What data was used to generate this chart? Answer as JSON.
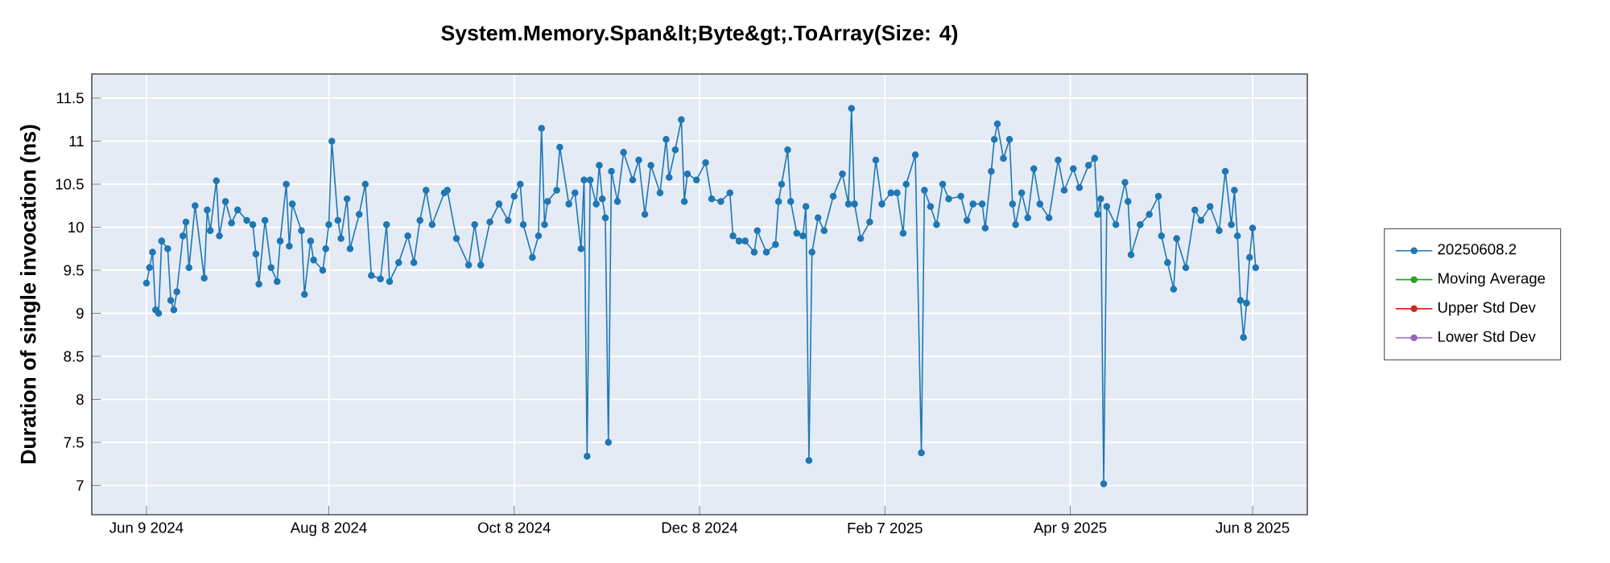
{
  "chart_data": {
    "type": "line",
    "title": "System.Memory.Span&lt;Byte&gt;.ToArray(Size: 4)",
    "ylabel": "Duration of single invocation (ns)",
    "xlim": [
      "2024-05-22",
      "2025-06-26"
    ],
    "ylim": [
      6.66,
      11.78
    ],
    "xticks": [
      {
        "value": "2024-06-09",
        "label": "Jun 9 2024"
      },
      {
        "value": "2024-08-08",
        "label": "Aug 8 2024"
      },
      {
        "value": "2024-10-08",
        "label": "Oct 8 2024"
      },
      {
        "value": "2024-12-08",
        "label": "Dec 8 2024"
      },
      {
        "value": "2025-02-07",
        "label": "Feb 7 2025"
      },
      {
        "value": "2025-04-09",
        "label": "Apr 9 2025"
      },
      {
        "value": "2025-06-08",
        "label": "Jun 8 2025"
      }
    ],
    "yticks": [
      7,
      7.5,
      8,
      8.5,
      9,
      9.5,
      10,
      10.5,
      11,
      11.5
    ],
    "grid": true,
    "legend": "right",
    "marker": "circle",
    "line_style": "solid",
    "x": [
      "2024-06-09",
      "2024-06-10",
      "2024-06-11",
      "2024-06-12",
      "2024-06-13",
      "2024-06-14",
      "2024-06-16",
      "2024-06-17",
      "2024-06-18",
      "2024-06-19",
      "2024-06-21",
      "2024-06-22",
      "2024-06-23",
      "2024-06-25",
      "2024-06-28",
      "2024-06-29",
      "2024-06-30",
      "2024-07-02",
      "2024-07-03",
      "2024-07-05",
      "2024-07-07",
      "2024-07-09",
      "2024-07-12",
      "2024-07-14",
      "2024-07-15",
      "2024-07-16",
      "2024-07-18",
      "2024-07-20",
      "2024-07-22",
      "2024-07-23",
      "2024-07-25",
      "2024-07-26",
      "2024-07-27",
      "2024-07-30",
      "2024-07-31",
      "2024-08-02",
      "2024-08-03",
      "2024-08-06",
      "2024-08-07",
      "2024-08-08",
      "2024-08-09",
      "2024-08-11",
      "2024-08-12",
      "2024-08-14",
      "2024-08-15",
      "2024-08-18",
      "2024-08-20",
      "2024-08-22",
      "2024-08-25",
      "2024-08-27",
      "2024-08-28",
      "2024-08-31",
      "2024-09-03",
      "2024-09-05",
      "2024-09-07",
      "2024-09-09",
      "2024-09-11",
      "2024-09-15",
      "2024-09-16",
      "2024-09-19",
      "2024-09-23",
      "2024-09-25",
      "2024-09-27",
      "2024-09-30",
      "2024-10-03",
      "2024-10-06",
      "2024-10-08",
      "2024-10-10",
      "2024-10-11",
      "2024-10-14",
      "2024-10-16",
      "2024-10-17",
      "2024-10-18",
      "2024-10-19",
      "2024-10-22",
      "2024-10-23",
      "2024-10-26",
      "2024-10-28",
      "2024-10-30",
      "2024-10-31",
      "2024-11-01",
      "2024-11-02",
      "2024-11-04",
      "2024-11-05",
      "2024-11-06",
      "2024-11-07",
      "2024-11-08",
      "2024-11-09",
      "2024-11-11",
      "2024-11-13",
      "2024-11-16",
      "2024-11-18",
      "2024-11-20",
      "2024-11-22",
      "2024-11-25",
      "2024-11-27",
      "2024-11-28",
      "2024-11-30",
      "2024-12-02",
      "2024-12-03",
      "2024-12-04",
      "2024-12-07",
      "2024-12-10",
      "2024-12-12",
      "2024-12-15",
      "2024-12-18",
      "2024-12-19",
      "2024-12-21",
      "2024-12-23",
      "2024-12-26",
      "2024-12-27",
      "2024-12-30",
      "2025-01-02",
      "2025-01-03",
      "2025-01-04",
      "2025-01-06",
      "2025-01-07",
      "2025-01-09",
      "2025-01-11",
      "2025-01-12",
      "2025-01-13",
      "2025-01-14",
      "2025-01-16",
      "2025-01-18",
      "2025-01-21",
      "2025-01-24",
      "2025-01-26",
      "2025-01-27",
      "2025-01-28",
      "2025-01-30",
      "2025-02-02",
      "2025-02-04",
      "2025-02-06",
      "2025-02-09",
      "2025-02-11",
      "2025-02-13",
      "2025-02-14",
      "2025-02-17",
      "2025-02-19",
      "2025-02-20",
      "2025-02-22",
      "2025-02-24",
      "2025-02-26",
      "2025-02-28",
      "2025-03-04",
      "2025-03-06",
      "2025-03-08",
      "2025-03-11",
      "2025-03-12",
      "2025-03-14",
      "2025-03-15",
      "2025-03-16",
      "2025-03-18",
      "2025-03-20",
      "2025-03-21",
      "2025-03-22",
      "2025-03-24",
      "2025-03-26",
      "2025-03-28",
      "2025-03-30",
      "2025-04-02",
      "2025-04-05",
      "2025-04-07",
      "2025-04-10",
      "2025-04-12",
      "2025-04-15",
      "2025-04-17",
      "2025-04-18",
      "2025-04-19",
      "2025-04-20",
      "2025-04-21",
      "2025-04-24",
      "2025-04-27",
      "2025-04-28",
      "2025-04-29",
      "2025-05-02",
      "2025-05-05",
      "2025-05-08",
      "2025-05-09",
      "2025-05-11",
      "2025-05-13",
      "2025-05-14",
      "2025-05-17",
      "2025-05-20",
      "2025-05-22",
      "2025-05-25",
      "2025-05-28",
      "2025-05-30",
      "2025-06-01",
      "2025-06-02",
      "2025-06-03",
      "2025-06-04",
      "2025-06-05",
      "2025-06-06",
      "2025-06-07",
      "2025-06-08",
      "2025-06-09"
    ],
    "series": [
      {
        "name": "20250608.2",
        "color": "#1f77b4",
        "values": [
          9.35,
          9.53,
          9.71,
          9.04,
          9.0,
          9.84,
          9.75,
          9.15,
          9.04,
          9.25,
          9.9,
          10.06,
          9.53,
          10.25,
          9.41,
          10.2,
          9.96,
          10.54,
          9.9,
          10.3,
          10.05,
          10.2,
          10.08,
          10.03,
          9.69,
          9.34,
          10.08,
          9.53,
          9.37,
          9.84,
          10.5,
          9.78,
          10.27,
          9.96,
          9.22,
          9.84,
          9.62,
          9.5,
          9.75,
          10.03,
          11.0,
          10.08,
          9.87,
          10.33,
          9.75,
          10.15,
          10.5,
          9.44,
          9.4,
          10.03,
          9.37,
          9.59,
          9.9,
          9.59,
          10.08,
          10.43,
          10.03,
          10.4,
          10.43,
          9.87,
          9.56,
          10.03,
          9.56,
          10.06,
          10.27,
          10.08,
          10.36,
          10.5,
          10.03,
          9.65,
          9.9,
          11.15,
          10.03,
          10.3,
          10.43,
          10.93,
          10.27,
          10.4,
          9.75,
          10.55,
          7.34,
          10.55,
          10.27,
          10.72,
          10.33,
          10.11,
          7.5,
          10.65,
          10.3,
          10.87,
          10.55,
          10.78,
          10.15,
          10.72,
          10.4,
          11.02,
          10.58,
          10.9,
          11.25,
          10.3,
          10.62,
          10.55,
          10.75,
          10.33,
          10.3,
          10.4,
          9.9,
          9.84,
          9.84,
          9.71,
          9.96,
          9.71,
          9.8,
          10.3,
          10.5,
          10.9,
          10.3,
          9.93,
          9.9,
          10.24,
          7.29,
          9.71,
          10.11,
          9.96,
          10.36,
          10.62,
          10.27,
          11.38,
          10.27,
          9.87,
          10.06,
          10.78,
          10.27,
          10.4,
          10.4,
          9.93,
          10.5,
          10.84,
          7.38,
          10.43,
          10.24,
          10.03,
          10.5,
          10.33,
          10.36,
          10.08,
          10.27,
          10.27,
          9.99,
          10.65,
          11.02,
          11.2,
          10.8,
          11.02,
          10.27,
          10.03,
          10.4,
          10.11,
          10.68,
          10.27,
          10.11,
          10.78,
          10.43,
          10.68,
          10.46,
          10.72,
          10.8,
          10.15,
          10.33,
          7.02,
          10.24,
          10.03,
          10.52,
          10.3,
          9.68,
          10.03,
          10.15,
          10.36,
          9.9,
          9.59,
          9.28,
          9.87,
          9.53,
          10.2,
          10.08,
          10.24,
          9.96,
          10.65,
          10.03,
          10.43,
          9.9,
          9.15,
          8.72,
          9.12,
          9.65,
          9.99,
          9.53
        ]
      },
      {
        "name": "Moving Average",
        "color": "#2ca02c",
        "values": [
          null,
          null,
          null,
          null,
          null,
          null,
          null,
          null,
          null,
          null,
          null,
          null,
          null,
          null,
          null,
          null,
          null,
          null,
          null,
          null,
          null,
          null,
          null,
          null,
          null,
          null,
          null,
          null,
          null,
          null,
          null,
          null,
          null,
          null,
          null,
          null,
          null,
          null,
          null,
          null,
          null,
          null,
          null,
          null,
          null,
          null,
          null,
          null,
          null,
          null,
          null,
          null,
          null,
          null,
          null,
          null,
          null,
          null,
          null,
          null,
          null,
          null,
          null,
          null,
          null,
          null,
          null,
          null,
          null,
          null,
          null,
          null,
          null,
          null,
          null,
          null,
          null,
          null,
          null,
          null,
          null,
          null,
          null,
          null,
          null,
          null,
          null,
          null,
          null,
          null,
          null,
          null,
          null,
          null,
          null,
          null,
          null,
          null,
          null,
          null,
          null,
          null,
          null,
          null,
          null,
          null,
          null,
          null,
          null,
          null,
          null,
          null,
          null,
          null,
          null,
          null,
          null,
          null,
          null,
          null,
          null,
          null,
          null,
          null,
          null,
          null,
          null,
          null,
          null,
          null,
          null,
          null,
          null,
          null,
          null,
          null,
          null,
          null,
          null,
          null,
          null,
          null,
          null,
          null,
          null,
          null,
          null,
          null,
          null,
          null,
          null,
          null,
          null,
          null,
          null,
          null,
          null,
          null,
          null,
          null,
          null,
          null,
          null,
          null,
          null,
          null,
          null,
          null,
          null,
          null,
          null,
          null,
          null,
          null,
          null,
          null,
          null,
          null,
          null,
          null,
          null,
          null,
          null,
          null,
          null,
          null,
          null,
          null,
          null,
          null,
          null,
          null,
          null,
          null,
          null,
          null,
          null
        ]
      },
      {
        "name": "Upper Std Dev",
        "color": "#d62728",
        "values": [
          null,
          null,
          null,
          null,
          null,
          null,
          null,
          null,
          null,
          null,
          null,
          null,
          null,
          null,
          null,
          null,
          null,
          null,
          null,
          null,
          null,
          null,
          null,
          null,
          null,
          null,
          null,
          null,
          null,
          null,
          null,
          null,
          null,
          null,
          null,
          null,
          null,
          null,
          null,
          null,
          null,
          null,
          null,
          null,
          null,
          null,
          null,
          null,
          null,
          null,
          null,
          null,
          null,
          null,
          null,
          null,
          null,
          null,
          null,
          null,
          null,
          null,
          null,
          null,
          null,
          null,
          null,
          null,
          null,
          null,
          null,
          null,
          null,
          null,
          null,
          null,
          null,
          null,
          null,
          null,
          null,
          null,
          null,
          null,
          null,
          null,
          null,
          null,
          null,
          null,
          null,
          null,
          null,
          null,
          null,
          null,
          null,
          null,
          null,
          null,
          null,
          null,
          null,
          null,
          null,
          null,
          null,
          null,
          null,
          null,
          null,
          null,
          null,
          null,
          null,
          null,
          null,
          null,
          null,
          null,
          null,
          null,
          null,
          null,
          null,
          null,
          null,
          null,
          null,
          null,
          null,
          null,
          null,
          null,
          null,
          null,
          null,
          null,
          null,
          null,
          null,
          null,
          null,
          null,
          null,
          null,
          null,
          null,
          null,
          null,
          null,
          null,
          null,
          null,
          null,
          null,
          null,
          null,
          null,
          null,
          null,
          null,
          null,
          null,
          null,
          null,
          null,
          null,
          null,
          null,
          null,
          null,
          null,
          null,
          null,
          null,
          null,
          null,
          null,
          null,
          null,
          null,
          null,
          null,
          null,
          null,
          null,
          null,
          null,
          null,
          null,
          null,
          null,
          null,
          null,
          null,
          null
        ]
      },
      {
        "name": "Lower Std Dev",
        "color": "#9467bd",
        "values": [
          null,
          null,
          null,
          null,
          null,
          null,
          null,
          null,
          null,
          null,
          null,
          null,
          null,
          null,
          null,
          null,
          null,
          null,
          null,
          null,
          null,
          null,
          null,
          null,
          null,
          null,
          null,
          null,
          null,
          null,
          null,
          null,
          null,
          null,
          null,
          null,
          null,
          null,
          null,
          null,
          null,
          null,
          null,
          null,
          null,
          null,
          null,
          null,
          null,
          null,
          null,
          null,
          null,
          null,
          null,
          null,
          null,
          null,
          null,
          null,
          null,
          null,
          null,
          null,
          null,
          null,
          null,
          null,
          null,
          null,
          null,
          null,
          null,
          null,
          null,
          null,
          null,
          null,
          null,
          null,
          null,
          null,
          null,
          null,
          null,
          null,
          null,
          null,
          null,
          null,
          null,
          null,
          null,
          null,
          null,
          null,
          null,
          null,
          null,
          null,
          null,
          null,
          null,
          null,
          null,
          null,
          null,
          null,
          null,
          null,
          null,
          null,
          null,
          null,
          null,
          null,
          null,
          null,
          null,
          null,
          null,
          null,
          null,
          null,
          null,
          null,
          null,
          null,
          null,
          null,
          null,
          null,
          null,
          null,
          null,
          null,
          null,
          null,
          null,
          null,
          null,
          null,
          null,
          null,
          null,
          null,
          null,
          null,
          null,
          null,
          null,
          null,
          null,
          null,
          null,
          null,
          null,
          null,
          null,
          null,
          null,
          null,
          null,
          null,
          null,
          null,
          null,
          null,
          null,
          null,
          null,
          null,
          null,
          null,
          null,
          null,
          null,
          null,
          null,
          null,
          null,
          null,
          null,
          null,
          null,
          null,
          null,
          null,
          null,
          null,
          null,
          null,
          null,
          null,
          null,
          null,
          null
        ]
      }
    ]
  }
}
